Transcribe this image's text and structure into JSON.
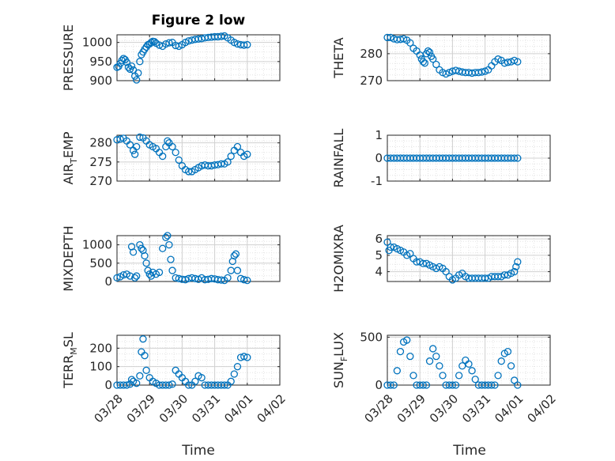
{
  "figure": {
    "title": "Figure 2 low",
    "marker_color": "#0072BD",
    "axis_color": "#262626",
    "grid_color": "#d0d0d0",
    "x_tick_labels": [
      "03/28",
      "03/29",
      "03/30",
      "03/31",
      "04/01",
      "04/02"
    ],
    "xlabel": "Time"
  },
  "chart_data": [
    {
      "type": "scatter",
      "name": "pressure",
      "ylabel": {
        "main": "PRESSURE",
        "sub": "",
        "rest": ""
      },
      "ylim": [
        900,
        1020
      ],
      "yticks": [
        900,
        950,
        1000
      ],
      "xlim": [
        0,
        5
      ],
      "grid": "major+minor",
      "x": [
        0,
        0.05,
        0.1,
        0.15,
        0.2,
        0.25,
        0.3,
        0.35,
        0.4,
        0.45,
        0.5,
        0.55,
        0.6,
        0.65,
        0.7,
        0.75,
        0.8,
        0.85,
        0.9,
        0.95,
        1.0,
        1.05,
        1.1,
        1.15,
        1.2,
        1.3,
        1.4,
        1.5,
        1.6,
        1.7,
        1.8,
        1.9,
        2.0,
        2.1,
        2.2,
        2.3,
        2.4,
        2.5,
        2.6,
        2.7,
        2.8,
        2.9,
        3.0,
        3.1,
        3.2,
        3.3,
        3.4,
        3.5,
        3.6,
        3.7,
        3.8,
        3.9,
        4.0
      ],
      "y": [
        935,
        937,
        945,
        953,
        958,
        955,
        948,
        935,
        930,
        938,
        928,
        912,
        902,
        920,
        950,
        968,
        975,
        982,
        988,
        994,
        996,
        1000,
        1003,
        1002,
        998,
        993,
        990,
        996,
        999,
        1000,
        992,
        990,
        994,
        1000,
        1004,
        1006,
        1008,
        1009,
        1010,
        1012,
        1013,
        1014,
        1015,
        1015,
        1016,
        1017,
        1012,
        1006,
        1000,
        996,
        994,
        993,
        994
      ]
    },
    {
      "type": "scatter",
      "name": "theta",
      "ylabel": {
        "main": "THETA",
        "sub": "",
        "rest": ""
      },
      "ylim": [
        270,
        287
      ],
      "yticks": [
        270,
        280
      ],
      "xlim": [
        0,
        5
      ],
      "grid": "major+minor",
      "x": [
        0,
        0.1,
        0.2,
        0.3,
        0.4,
        0.5,
        0.6,
        0.7,
        0.8,
        0.9,
        1.0,
        1.05,
        1.1,
        1.15,
        1.2,
        1.25,
        1.3,
        1.35,
        1.4,
        1.5,
        1.6,
        1.7,
        1.8,
        1.9,
        2.0,
        2.1,
        2.2,
        2.3,
        2.4,
        2.5,
        2.6,
        2.7,
        2.8,
        2.9,
        3.0,
        3.1,
        3.2,
        3.3,
        3.4,
        3.5,
        3.6,
        3.7,
        3.8,
        3.9,
        4.0
      ],
      "y": [
        286,
        286,
        285.5,
        285.2,
        285.3,
        285.5,
        285,
        284,
        282,
        281,
        279.5,
        278,
        277,
        276.5,
        280,
        281,
        280.5,
        279,
        278,
        276,
        274,
        273,
        272.5,
        273,
        273.5,
        273.8,
        273.5,
        273.2,
        273,
        273,
        272.8,
        273,
        273,
        273.2,
        273.5,
        274,
        275.5,
        277,
        278,
        277.5,
        276.5,
        276.8,
        277,
        277.5,
        277
      ]
    },
    {
      "type": "scatter",
      "name": "air_temp",
      "ylabel": {
        "main": "AIR",
        "sub": "T",
        "rest": "EMP"
      },
      "ylim": [
        270,
        282
      ],
      "yticks": [
        270,
        275,
        280
      ],
      "xlim": [
        0,
        5
      ],
      "grid": "major+minor",
      "x": [
        0,
        0.1,
        0.2,
        0.3,
        0.4,
        0.5,
        0.55,
        0.6,
        0.7,
        0.8,
        0.9,
        1.0,
        1.1,
        1.2,
        1.3,
        1.4,
        1.5,
        1.55,
        1.6,
        1.7,
        1.8,
        1.9,
        2.0,
        2.1,
        2.2,
        2.3,
        2.4,
        2.5,
        2.6,
        2.7,
        2.8,
        2.9,
        3.0,
        3.1,
        3.2,
        3.3,
        3.4,
        3.5,
        3.6,
        3.7,
        3.8,
        3.9,
        4.0
      ],
      "y": [
        280.8,
        281,
        281.2,
        280.5,
        279.5,
        278,
        277,
        279,
        281.5,
        281.3,
        280.5,
        279.5,
        279,
        278.5,
        277.5,
        276.5,
        279,
        280.5,
        280,
        279,
        277.5,
        275.5,
        274,
        273,
        272.5,
        272.5,
        273,
        273.5,
        274,
        274.2,
        274,
        274,
        274.2,
        274.3,
        274.5,
        274.5,
        275,
        276.5,
        278,
        279,
        277.5,
        276.5,
        277
      ]
    },
    {
      "type": "scatter",
      "name": "rainfall",
      "ylabel": {
        "main": "RAINFALL",
        "sub": "",
        "rest": ""
      },
      "ylim": [
        -1,
        1
      ],
      "yticks": [
        -1,
        0,
        1
      ],
      "xlim": [
        0,
        5
      ],
      "grid": "major+minor",
      "x": [
        0,
        0.1,
        0.2,
        0.3,
        0.4,
        0.5,
        0.6,
        0.7,
        0.8,
        0.9,
        1.0,
        1.1,
        1.2,
        1.3,
        1.4,
        1.5,
        1.6,
        1.7,
        1.8,
        1.9,
        2.0,
        2.1,
        2.2,
        2.3,
        2.4,
        2.5,
        2.6,
        2.7,
        2.8,
        2.9,
        3.0,
        3.1,
        3.2,
        3.3,
        3.4,
        3.5,
        3.6,
        3.7,
        3.8,
        3.9,
        4.0
      ],
      "y": [
        0,
        0,
        0,
        0,
        0,
        0,
        0,
        0,
        0,
        0,
        0,
        0,
        0,
        0,
        0,
        0,
        0,
        0,
        0,
        0,
        0,
        0,
        0,
        0,
        0,
        0,
        0,
        0,
        0,
        0,
        0,
        0,
        0,
        0,
        0,
        0,
        0,
        0,
        0,
        0,
        0
      ]
    },
    {
      "type": "scatter",
      "name": "mixdepth",
      "ylabel": {
        "main": "MIXDEPTH",
        "sub": "",
        "rest": ""
      },
      "ylim": [
        0,
        1250
      ],
      "yticks": [
        0,
        500,
        1000
      ],
      "xlim": [
        0,
        5
      ],
      "grid": "major+minor",
      "x": [
        0,
        0.1,
        0.2,
        0.3,
        0.4,
        0.45,
        0.5,
        0.55,
        0.6,
        0.7,
        0.75,
        0.8,
        0.85,
        0.9,
        0.95,
        1.0,
        1.05,
        1.1,
        1.2,
        1.3,
        1.4,
        1.5,
        1.55,
        1.6,
        1.65,
        1.7,
        1.8,
        1.9,
        2.0,
        2.1,
        2.2,
        2.3,
        2.4,
        2.5,
        2.6,
        2.7,
        2.8,
        2.9,
        3.0,
        3.1,
        3.2,
        3.3,
        3.4,
        3.5,
        3.55,
        3.6,
        3.65,
        3.7,
        3.8,
        3.9,
        4.0
      ],
      "y": [
        100,
        130,
        180,
        200,
        150,
        950,
        800,
        100,
        150,
        1000,
        900,
        850,
        700,
        500,
        300,
        200,
        150,
        250,
        200,
        250,
        900,
        1200,
        1250,
        1000,
        600,
        300,
        100,
        80,
        60,
        50,
        80,
        100,
        80,
        60,
        100,
        50,
        60,
        80,
        70,
        50,
        40,
        30,
        100,
        300,
        550,
        700,
        750,
        300,
        80,
        50,
        30
      ]
    },
    {
      "type": "scatter",
      "name": "h2omixra",
      "ylabel": {
        "main": "H2OMIXRA",
        "sub": "",
        "rest": ""
      },
      "ylim": [
        3.4,
        6.2
      ],
      "yticks": [
        4,
        5,
        6
      ],
      "xlim": [
        0,
        5
      ],
      "grid": "major+minor",
      "x": [
        0,
        0.05,
        0.1,
        0.2,
        0.3,
        0.4,
        0.5,
        0.6,
        0.7,
        0.8,
        0.9,
        1.0,
        1.1,
        1.2,
        1.3,
        1.4,
        1.5,
        1.6,
        1.7,
        1.8,
        1.9,
        2.0,
        2.1,
        2.2,
        2.3,
        2.4,
        2.5,
        2.6,
        2.7,
        2.8,
        2.9,
        3.0,
        3.1,
        3.2,
        3.3,
        3.4,
        3.5,
        3.6,
        3.7,
        3.8,
        3.9,
        3.95,
        4.0
      ],
      "y": [
        5.8,
        5.3,
        5.5,
        5.5,
        5.4,
        5.3,
        5.2,
        5.0,
        5.1,
        4.8,
        4.6,
        4.6,
        4.5,
        4.5,
        4.4,
        4.3,
        4.2,
        4.3,
        4.2,
        4.0,
        3.7,
        3.5,
        3.6,
        3.8,
        3.9,
        3.7,
        3.6,
        3.6,
        3.6,
        3.6,
        3.6,
        3.6,
        3.6,
        3.7,
        3.7,
        3.7,
        3.7,
        3.8,
        3.8,
        3.9,
        4.0,
        4.3,
        4.6
      ]
    },
    {
      "type": "scatter",
      "name": "terr_msl",
      "ylabel": {
        "main": "TERR",
        "sub": "M",
        "rest": "SL"
      },
      "ylim": [
        0,
        270
      ],
      "yticks": [
        0,
        100,
        200
      ],
      "xlim": [
        0,
        5
      ],
      "grid": "major+minor",
      "x": [
        0,
        0.1,
        0.2,
        0.3,
        0.4,
        0.45,
        0.5,
        0.6,
        0.7,
        0.75,
        0.8,
        0.85,
        0.9,
        1.0,
        1.1,
        1.2,
        1.3,
        1.4,
        1.5,
        1.6,
        1.7,
        1.8,
        1.9,
        2.0,
        2.1,
        2.2,
        2.3,
        2.4,
        2.5,
        2.6,
        2.7,
        2.8,
        2.9,
        3.0,
        3.1,
        3.2,
        3.3,
        3.4,
        3.5,
        3.6,
        3.7,
        3.8,
        3.9,
        4.0
      ],
      "y": [
        0,
        0,
        0,
        0,
        5,
        30,
        20,
        10,
        50,
        180,
        250,
        160,
        80,
        40,
        20,
        10,
        0,
        0,
        0,
        0,
        5,
        80,
        60,
        40,
        20,
        0,
        0,
        20,
        50,
        40,
        0,
        0,
        0,
        0,
        0,
        0,
        0,
        0,
        20,
        60,
        100,
        150,
        155,
        150
      ]
    },
    {
      "type": "scatter",
      "name": "sun_flux",
      "ylabel": {
        "main": "SUN",
        "sub": "F",
        "rest": "LUX"
      },
      "ylim": [
        0,
        520
      ],
      "yticks": [
        0,
        500
      ],
      "xlim": [
        0,
        5
      ],
      "grid": "major+minor",
      "x": [
        0,
        0.1,
        0.2,
        0.3,
        0.4,
        0.5,
        0.6,
        0.7,
        0.8,
        0.9,
        1.0,
        1.1,
        1.2,
        1.3,
        1.4,
        1.5,
        1.6,
        1.7,
        1.8,
        1.9,
        2.0,
        2.1,
        2.2,
        2.3,
        2.4,
        2.5,
        2.6,
        2.7,
        2.8,
        2.9,
        3.0,
        3.1,
        3.2,
        3.3,
        3.4,
        3.5,
        3.6,
        3.7,
        3.8,
        3.9,
        4.0
      ],
      "y": [
        0,
        0,
        0,
        150,
        350,
        450,
        470,
        300,
        100,
        0,
        0,
        0,
        0,
        250,
        380,
        300,
        200,
        100,
        0,
        0,
        0,
        0,
        100,
        200,
        260,
        220,
        150,
        60,
        0,
        0,
        0,
        0,
        0,
        0,
        100,
        250,
        330,
        350,
        200,
        50,
        0
      ]
    }
  ]
}
